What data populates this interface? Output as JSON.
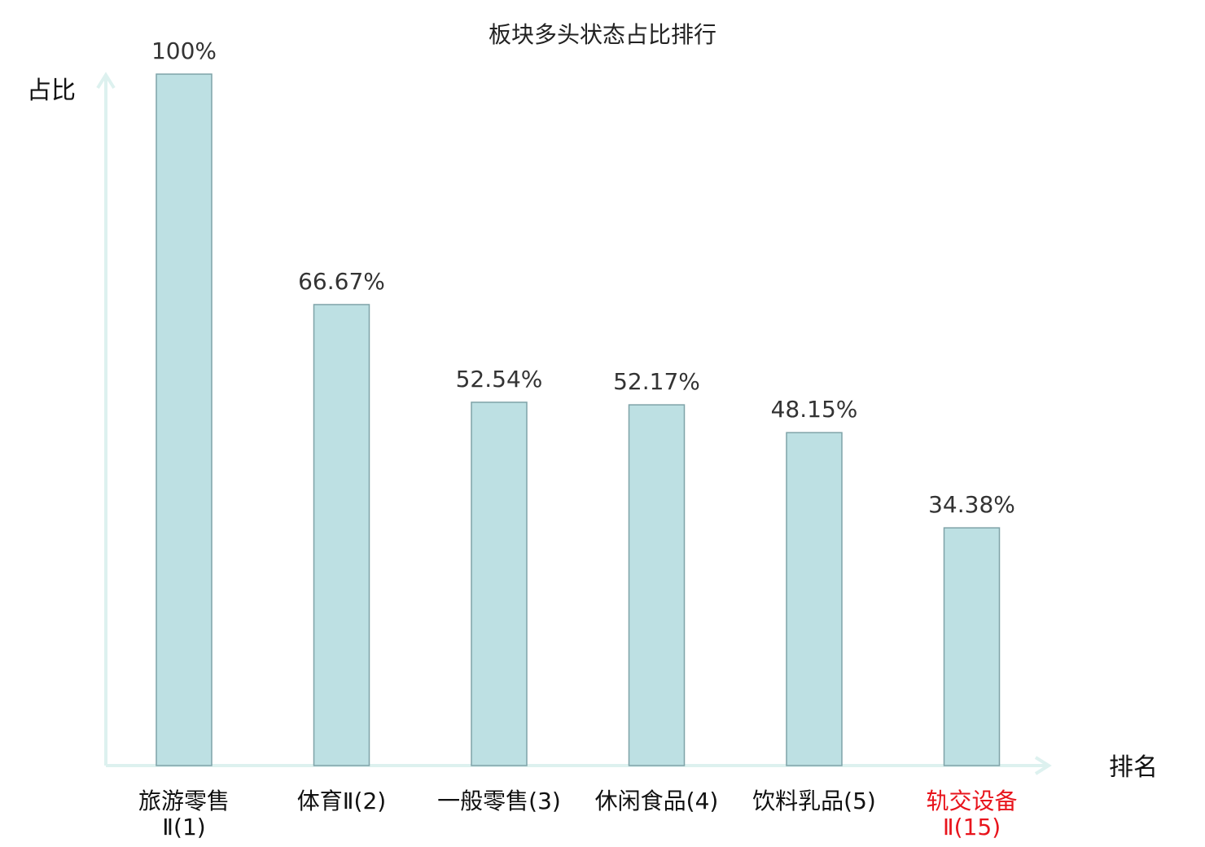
{
  "chart_data": {
    "type": "bar",
    "title": "板块多头状态占比排行",
    "ylabel": "占比",
    "xlabel": "排名",
    "ylim": [
      0,
      100
    ],
    "grid": false,
    "categories": [
      {
        "line1": "旅游零售",
        "line2": "Ⅱ(1)",
        "highlight": false
      },
      {
        "line1": "体育Ⅱ(2)",
        "line2": "",
        "highlight": false
      },
      {
        "line1": "一般零售(3)",
        "line2": "",
        "highlight": false
      },
      {
        "line1": "休闲食品(4)",
        "line2": "",
        "highlight": false
      },
      {
        "line1": "饮料乳品(5)",
        "line2": "",
        "highlight": false
      },
      {
        "line1": "轨交设备",
        "line2": "Ⅱ(15)",
        "highlight": true
      }
    ],
    "values": [
      100,
      66.67,
      52.54,
      52.17,
      48.15,
      34.38
    ],
    "value_labels": [
      "100%",
      "66.67%",
      "52.54%",
      "52.17%",
      "48.15%",
      "34.38%"
    ]
  },
  "colors": {
    "bar_fill": "#bde0e3",
    "bar_stroke": "#7fa3a8",
    "axis": "#ddf1ef",
    "text": "#111111",
    "value_text": "#333333",
    "highlight": "#e8141c"
  }
}
